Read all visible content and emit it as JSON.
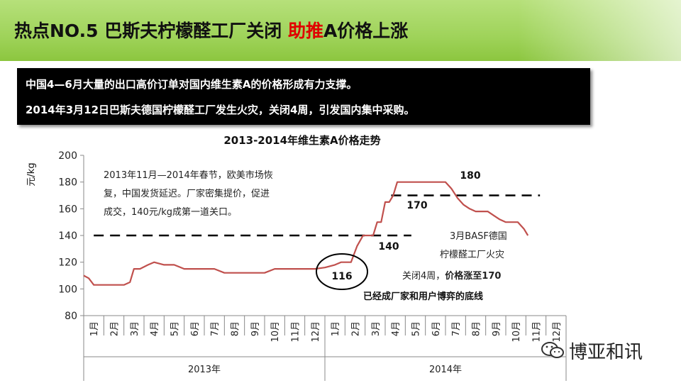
{
  "slide": {
    "title_main": "热点NO.5 巴斯夫柠檬醛工厂关闭 ",
    "title_highlight": "助推",
    "title_tail": "A价格上涨",
    "box_line1": "中国4—6月大量的出口高价订单对国内维生素A的价格形成有力支撑。",
    "box_line2": "2014年3月12日巴斯夫德国柠檬醛工厂发生火灾，关闭4周，引发国内集中采购。",
    "brand": "博亚和讯"
  },
  "colors": {
    "title_bg": "#9fd35a",
    "price_line": "#c0504d",
    "highlight": "#e00000",
    "dashed": "#000000"
  },
  "chart_data": {
    "type": "line",
    "title": "2013-2014年维生素A价格走势",
    "ylabel": "元/kg",
    "ylim": [
      80,
      200
    ],
    "yticks": [
      80,
      100,
      120,
      140,
      160,
      180,
      200
    ],
    "months": [
      "1月",
      "2月",
      "3月",
      "4月",
      "5月",
      "6月",
      "7月",
      "8月",
      "9月",
      "10月",
      "11月",
      "12月",
      "1月",
      "2月",
      "3月",
      "4月",
      "5月",
      "6月",
      "7月",
      "8月",
      "9月",
      "10月",
      "11月",
      "12月"
    ],
    "years": [
      "2013年",
      "2014年"
    ],
    "series": [
      {
        "x": [
          0.0,
          0.25,
          0.5,
          0.8,
          1.2,
          1.6,
          2.0,
          2.3,
          2.5,
          2.8,
          3.2,
          3.5,
          4.0,
          4.5,
          5.0,
          5.5,
          6.0,
          6.5,
          7.0,
          7.5,
          8.0,
          8.5,
          9.0,
          9.5,
          10.0,
          10.5,
          11.0,
          11.5,
          12.0,
          12.5,
          12.8,
          13.0,
          13.3,
          13.6,
          13.9,
          14.2,
          14.4,
          14.6,
          14.8,
          15.0,
          15.2,
          15.4,
          15.6,
          16.0,
          16.5,
          17.0,
          17.5,
          18.0,
          18.3,
          18.6,
          18.9,
          19.2,
          19.5,
          19.8,
          20.1,
          20.4,
          20.7,
          21.0,
          21.3,
          21.6,
          21.9,
          22.1
        ],
        "values": [
          110,
          108,
          103,
          103,
          103,
          103,
          103,
          105,
          115,
          115,
          118,
          120,
          118,
          118,
          115,
          115,
          115,
          115,
          112,
          112,
          112,
          112,
          112,
          115,
          115,
          115,
          115,
          115,
          116,
          118,
          120,
          120,
          120,
          132,
          140,
          140,
          140,
          150,
          150,
          165,
          165,
          170,
          180,
          180,
          180,
          180,
          180,
          180,
          175,
          168,
          163,
          160,
          158,
          158,
          158,
          155,
          152,
          150,
          150,
          150,
          145,
          140
        ]
      }
    ],
    "reference_lines": [
      {
        "value": 140,
        "x_range": [
          0.5,
          16.3
        ]
      },
      {
        "value": 170,
        "x_range": [
          15.3,
          22.7
        ]
      }
    ],
    "annotations": {
      "top_left": [
        "2013年11月—2014年春节，欧美市场恢",
        "复，中国发货延迟。厂家密集提价，促进",
        "成交，140元/kg成第一道关口。"
      ],
      "label_116": "116",
      "label_140": "140",
      "label_170": "170",
      "label_180": "180",
      "right_1": "3月BASF德国",
      "right_2": "柠檬醛工厂火灾",
      "right_3a": "关闭4周，",
      "right_3b": "价格涨至170",
      "right_4": "已经成厂家和用户博弈的底线"
    }
  }
}
